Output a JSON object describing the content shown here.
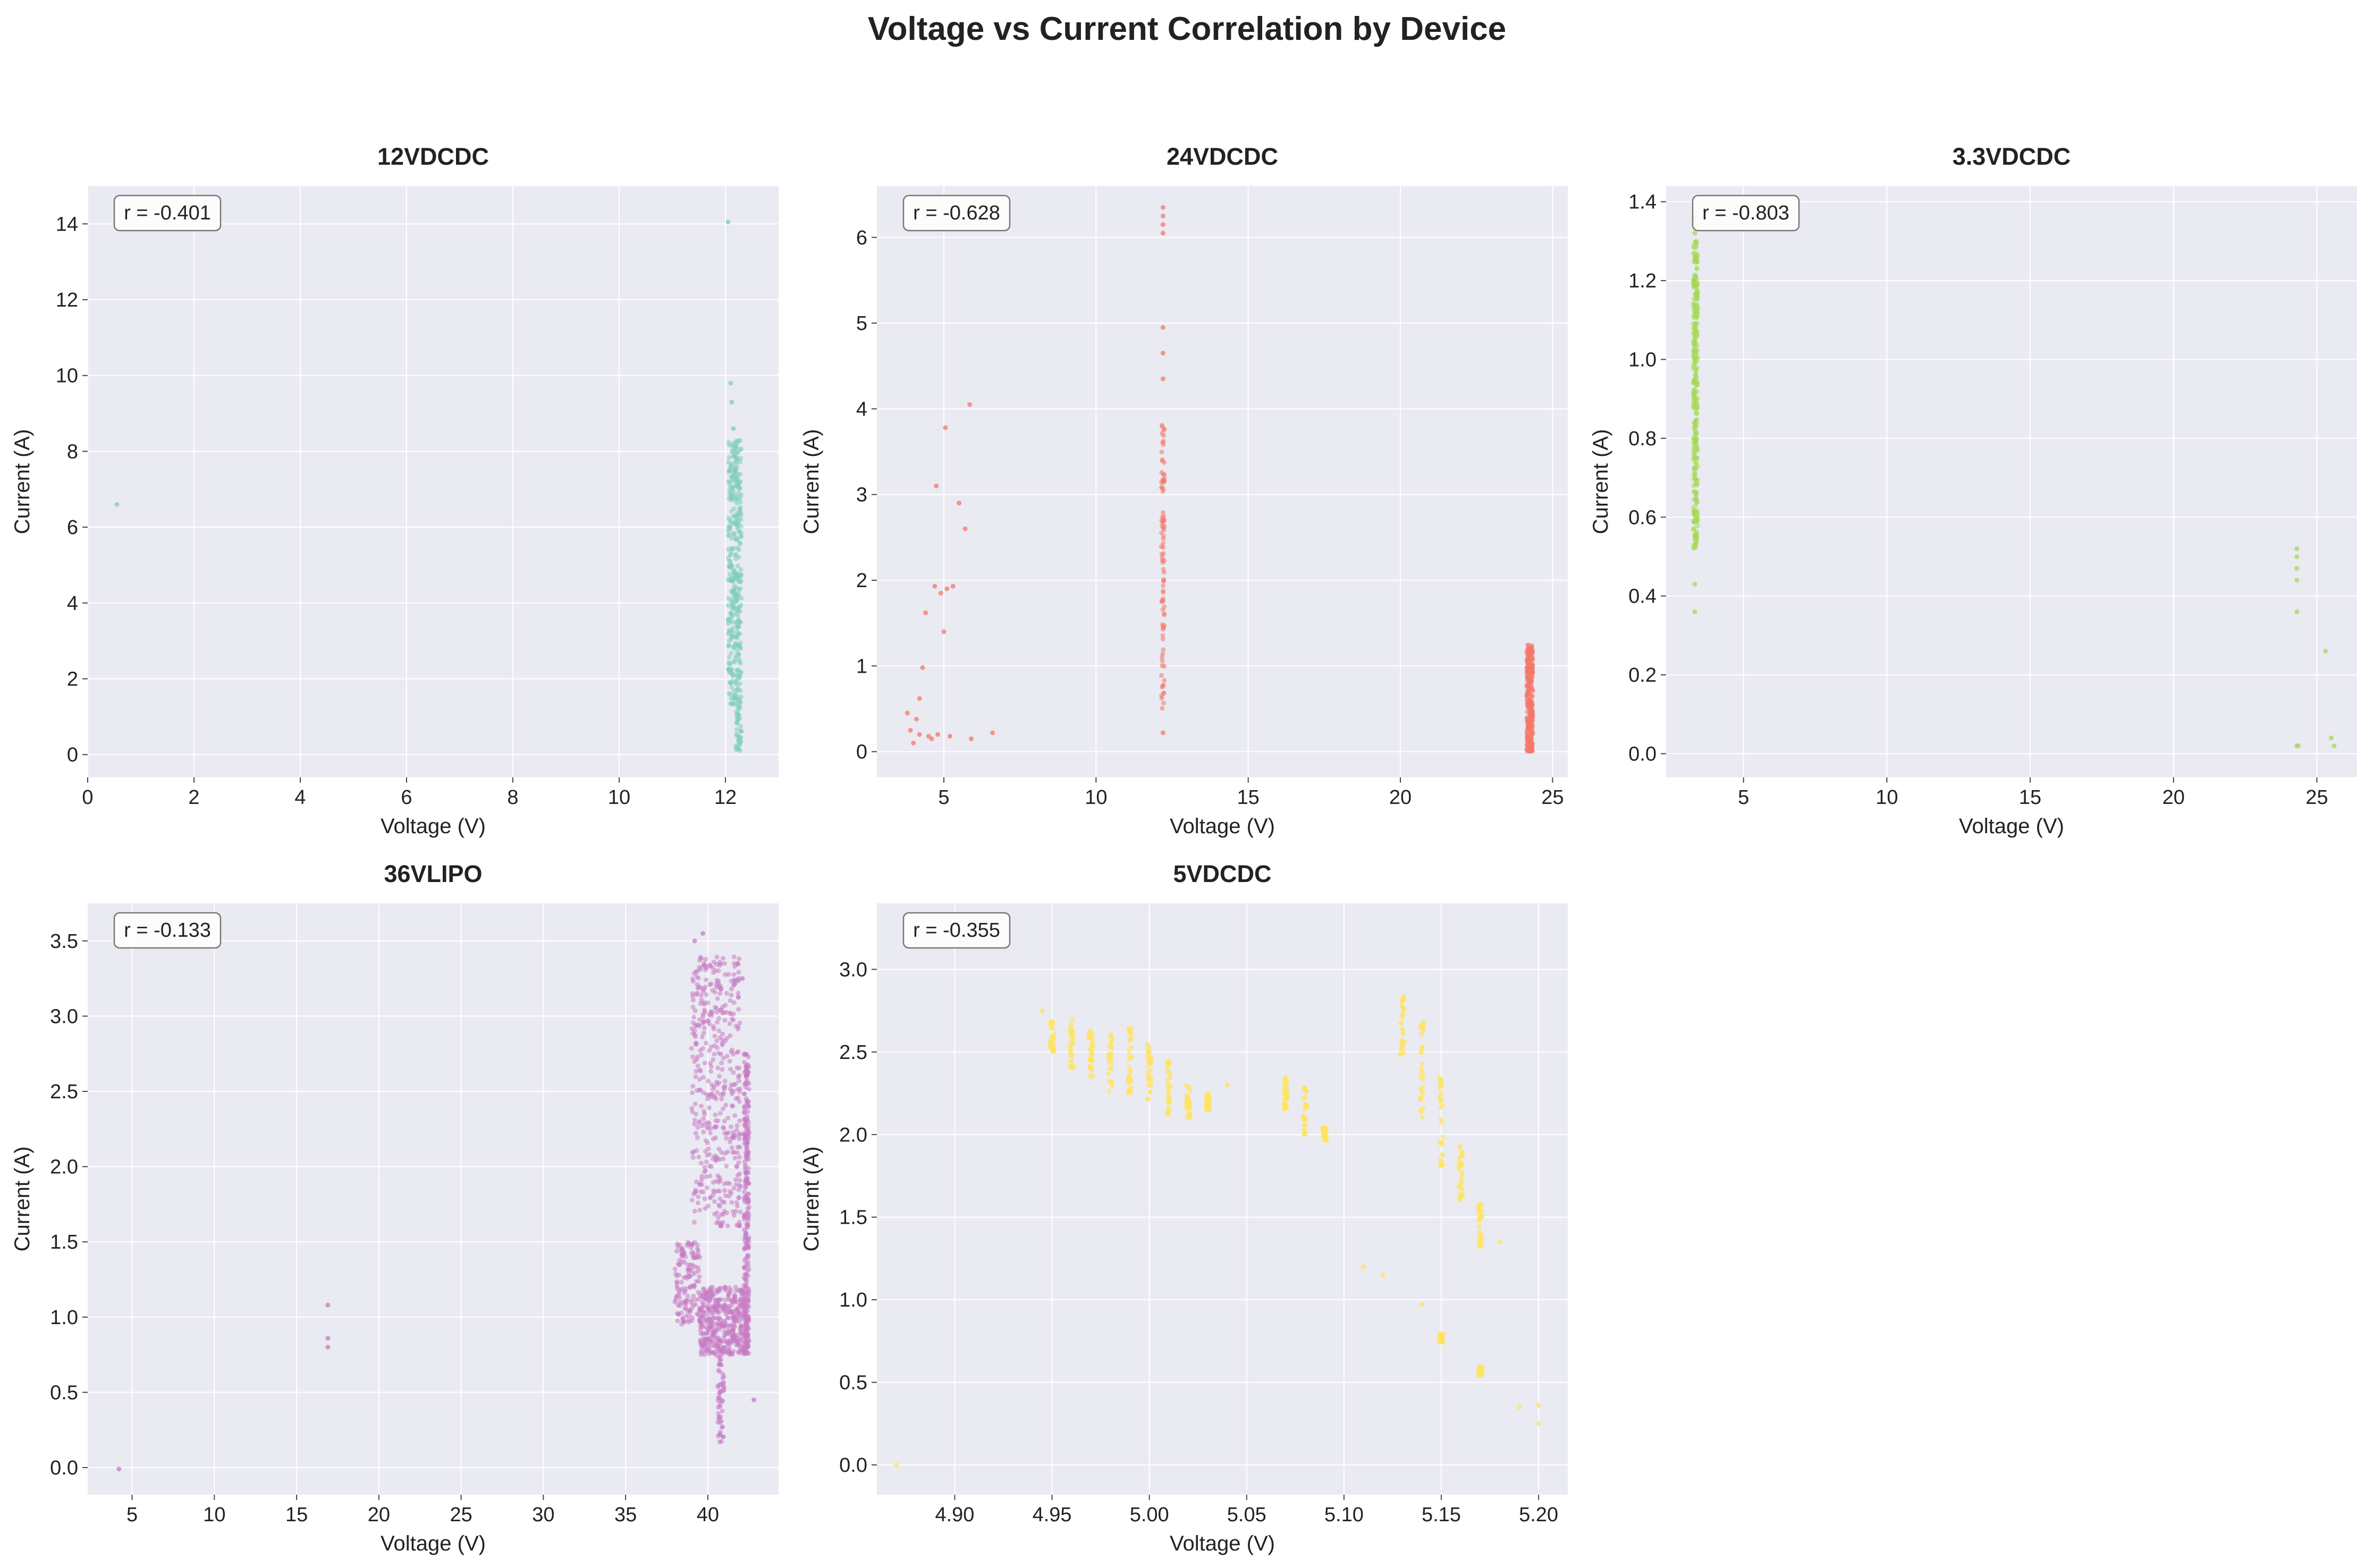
{
  "title": "Voltage vs Current Correlation by Device",
  "chart_data": [
    {
      "type": "scatter",
      "title": "12VDCDC",
      "xlabel": "Voltage (V)",
      "ylabel": "Current (A)",
      "color": "#7fcdbb",
      "annotation": "r = -0.401",
      "xlim": [
        0,
        13
      ],
      "ylim": [
        -0.6,
        15
      ],
      "xticks": [
        0,
        2,
        4,
        6,
        8,
        10,
        12
      ],
      "yticks": [
        0,
        2,
        4,
        6,
        8,
        10,
        12,
        14
      ],
      "points": [
        [
          0.55,
          6.6
        ],
        [
          12.05,
          14.05
        ],
        [
          12.1,
          9.8
        ],
        [
          12.12,
          9.3
        ],
        [
          12.15,
          8.6
        ],
        [
          12.2,
          8.1
        ]
      ],
      "clusters": [
        {
          "x": [
            12.05,
            12.3
          ],
          "y": [
            1.3,
            8.3
          ],
          "n": 380
        },
        {
          "x": [
            12.2,
            12.3
          ],
          "y": [
            0.1,
            1.4
          ],
          "n": 40
        }
      ]
    },
    {
      "type": "scatter",
      "title": "24VDCDC",
      "xlabel": "Voltage (V)",
      "ylabel": "Current (A)",
      "color": "#f4786a",
      "annotation": "r = -0.628",
      "xlim": [
        2.8,
        25.5
      ],
      "ylim": [
        -0.3,
        6.6
      ],
      "xticks": [
        5,
        10,
        15,
        20,
        25
      ],
      "yticks": [
        0,
        1,
        2,
        3,
        4,
        5,
        6
      ],
      "points": [
        [
          3.8,
          0.45
        ],
        [
          3.9,
          0.25
        ],
        [
          4.0,
          0.1
        ],
        [
          4.1,
          0.38
        ],
        [
          4.2,
          0.2
        ],
        [
          4.2,
          0.62
        ],
        [
          4.3,
          0.98
        ],
        [
          4.4,
          1.62
        ],
        [
          4.5,
          0.18
        ],
        [
          4.6,
          0.15
        ],
        [
          4.7,
          1.93
        ],
        [
          4.75,
          3.1
        ],
        [
          4.8,
          0.2
        ],
        [
          4.9,
          1.85
        ],
        [
          5.0,
          1.4
        ],
        [
          5.05,
          3.78
        ],
        [
          5.1,
          1.9
        ],
        [
          5.2,
          0.18
        ],
        [
          5.3,
          1.93
        ],
        [
          5.5,
          2.9
        ],
        [
          5.7,
          2.6
        ],
        [
          5.85,
          4.05
        ],
        [
          5.9,
          0.15
        ],
        [
          6.6,
          0.22
        ],
        [
          12.2,
          6.35
        ],
        [
          12.2,
          6.25
        ],
        [
          12.2,
          6.15
        ],
        [
          12.2,
          6.05
        ],
        [
          12.2,
          4.95
        ],
        [
          12.2,
          4.65
        ],
        [
          12.2,
          4.35
        ],
        [
          12.2,
          0.22
        ]
      ],
      "clusters": [
        {
          "x": [
            12.15,
            12.25
          ],
          "y": [
            0.5,
            3.9
          ],
          "n": 90
        },
        {
          "x": [
            24.15,
            24.35
          ],
          "y": [
            0.0,
            1.25
          ],
          "n": 320
        }
      ]
    },
    {
      "type": "scatter",
      "title": "3.3VDCDC",
      "xlabel": "Voltage (V)",
      "ylabel": "Current (A)",
      "color": "#a6d854",
      "annotation": "r = -0.803",
      "xlim": [
        2.3,
        26.4
      ],
      "ylim": [
        -0.06,
        1.44
      ],
      "xticks": [
        5,
        10,
        15,
        20,
        25
      ],
      "yticks": [
        0.0,
        0.2,
        0.4,
        0.6,
        0.8,
        1.0,
        1.2,
        1.4
      ],
      "points": [
        [
          3.3,
          0.43
        ],
        [
          3.3,
          0.36
        ],
        [
          3.3,
          1.36
        ],
        [
          3.3,
          1.32
        ],
        [
          24.3,
          0.52
        ],
        [
          24.3,
          0.5
        ],
        [
          24.3,
          0.47
        ],
        [
          24.3,
          0.44
        ],
        [
          24.3,
          0.36
        ],
        [
          24.3,
          0.02
        ],
        [
          24.35,
          0.02
        ],
        [
          25.3,
          0.26
        ],
        [
          25.5,
          0.04
        ],
        [
          25.6,
          0.02
        ]
      ],
      "clusters": [
        {
          "x": [
            3.25,
            3.4
          ],
          "y": [
            0.52,
            1.3
          ],
          "n": 320
        }
      ]
    },
    {
      "type": "scatter",
      "title": "36VLIPO",
      "xlabel": "Voltage (V)",
      "ylabel": "Current (A)",
      "color": "#c77cc4",
      "annotation": "r = -0.133",
      "xlim": [
        2.3,
        44.3
      ],
      "ylim": [
        -0.18,
        3.75
      ],
      "xticks": [
        5,
        10,
        15,
        20,
        25,
        30,
        35,
        40
      ],
      "yticks": [
        0.0,
        0.5,
        1.0,
        1.5,
        2.0,
        2.5,
        3.0,
        3.5
      ],
      "points": [
        [
          4.2,
          -0.01
        ],
        [
          16.9,
          1.08
        ],
        [
          16.9,
          0.86
        ],
        [
          16.9,
          0.8
        ],
        [
          39.7,
          3.55
        ],
        [
          39.2,
          3.5
        ],
        [
          41.8,
          3.35
        ],
        [
          42.1,
          3.25
        ],
        [
          42.8,
          0.45
        ]
      ],
      "clusters": [
        {
          "x": [
            39.0,
            42.0
          ],
          "y": [
            1.6,
            3.4
          ],
          "n": 450
        },
        {
          "x": [
            38.0,
            39.5
          ],
          "y": [
            0.95,
            1.5
          ],
          "n": 140
        },
        {
          "x": [
            39.5,
            42.5
          ],
          "y": [
            0.75,
            1.2
          ],
          "n": 450
        },
        {
          "x": [
            40.6,
            41.0
          ],
          "y": [
            0.15,
            0.8
          ],
          "n": 60
        },
        {
          "x": [
            42.2,
            42.5
          ],
          "y": [
            0.75,
            2.75
          ],
          "n": 260
        }
      ]
    },
    {
      "type": "scatter",
      "title": "5VDCDC",
      "xlabel": "Voltage (V)",
      "ylabel": "Current (A)",
      "color": "#ffe45c",
      "annotation": "r = -0.355",
      "xlim": [
        4.86,
        5.215
      ],
      "ylim": [
        -0.18,
        3.4
      ],
      "xticks": [
        4.9,
        4.95,
        5.0,
        5.05,
        5.1,
        5.15,
        5.2
      ],
      "yticks": [
        0.0,
        0.5,
        1.0,
        1.5,
        2.0,
        2.5,
        3.0
      ],
      "xtick_labels": [
        "4.90",
        "4.95",
        "5.00",
        "5.05",
        "5.10",
        "5.15",
        "5.20"
      ],
      "points": [
        [
          4.87,
          0.0
        ],
        [
          4.945,
          2.75
        ],
        [
          4.96,
          2.62
        ],
        [
          5.04,
          2.3
        ],
        [
          5.11,
          1.2
        ],
        [
          5.12,
          1.15
        ],
        [
          5.14,
          0.97
        ],
        [
          5.15,
          0.78
        ],
        [
          5.17,
          0.58
        ],
        [
          5.18,
          1.35
        ],
        [
          5.19,
          0.35
        ],
        [
          5.2,
          0.36
        ],
        [
          5.2,
          0.25
        ]
      ],
      "columns": [
        [
          4.95,
          2.5,
          2.7
        ],
        [
          4.96,
          2.4,
          2.7
        ],
        [
          4.97,
          2.35,
          2.65
        ],
        [
          4.98,
          2.25,
          2.62
        ],
        [
          4.99,
          2.25,
          2.65
        ],
        [
          5.0,
          2.2,
          2.55
        ],
        [
          5.01,
          2.1,
          2.45
        ],
        [
          5.02,
          2.1,
          2.3
        ],
        [
          5.03,
          2.15,
          2.25
        ],
        [
          5.07,
          2.15,
          2.35
        ],
        [
          5.08,
          2.0,
          2.3
        ],
        [
          5.09,
          1.95,
          2.05
        ],
        [
          5.13,
          2.45,
          2.85
        ],
        [
          5.14,
          2.0,
          2.7
        ],
        [
          5.15,
          1.8,
          2.35
        ],
        [
          5.16,
          1.6,
          1.95
        ],
        [
          5.17,
          1.32,
          1.58
        ],
        [
          5.15,
          0.74,
          0.8
        ],
        [
          5.17,
          0.54,
          0.6
        ]
      ]
    }
  ]
}
